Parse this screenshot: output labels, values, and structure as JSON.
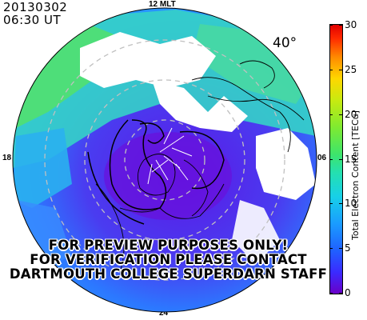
{
  "header": {
    "date": "20130302",
    "time": "06:30 UT"
  },
  "mlt_labels": {
    "top": "12 MLT",
    "left": "18",
    "right": "06",
    "bottom": "24"
  },
  "lat_label": "40°",
  "warning": [
    "FOR PREVIEW PURPOSES ONLY!",
    "FOR VERIFICATION PLEASE CONTACT",
    "DARTMOUTH COLLEGE SUPERDARN STAFF"
  ],
  "colorbar": {
    "title": "Total Electron Content [TECu]",
    "min": 0,
    "max": 30,
    "ticks": [
      "0",
      "5",
      "10",
      "15",
      "20",
      "25",
      "30"
    ]
  },
  "colors": {
    "ring": "#b0b0b0",
    "coast": "#000000"
  }
}
